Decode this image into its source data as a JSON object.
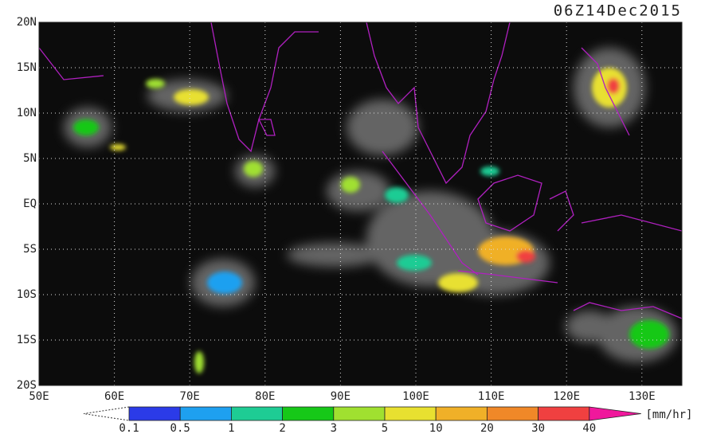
{
  "map": {
    "timestamp": "06Z14Dec2015",
    "lat_labels": [
      "20N",
      "15N",
      "10N",
      "5N",
      "EQ",
      "5S",
      "10S",
      "15S",
      "20S"
    ],
    "lon_labels": [
      "50E",
      "60E",
      "70E",
      "80E",
      "90E",
      "100E",
      "110E",
      "120E",
      "130E"
    ],
    "colorbar": {
      "labels": [
        "0.1",
        "0.5",
        "1",
        "2",
        "3",
        "5",
        "10",
        "20",
        "30",
        "40"
      ],
      "colors": [
        "#2b3be8",
        "#1ea0f0",
        "#1ecc94",
        "#16c818",
        "#a0e030",
        "#e8e030",
        "#f0b028",
        "#f08828",
        "#f04040"
      ],
      "over_color": "#f0189c",
      "unit": "[mm/hr]"
    }
  }
}
